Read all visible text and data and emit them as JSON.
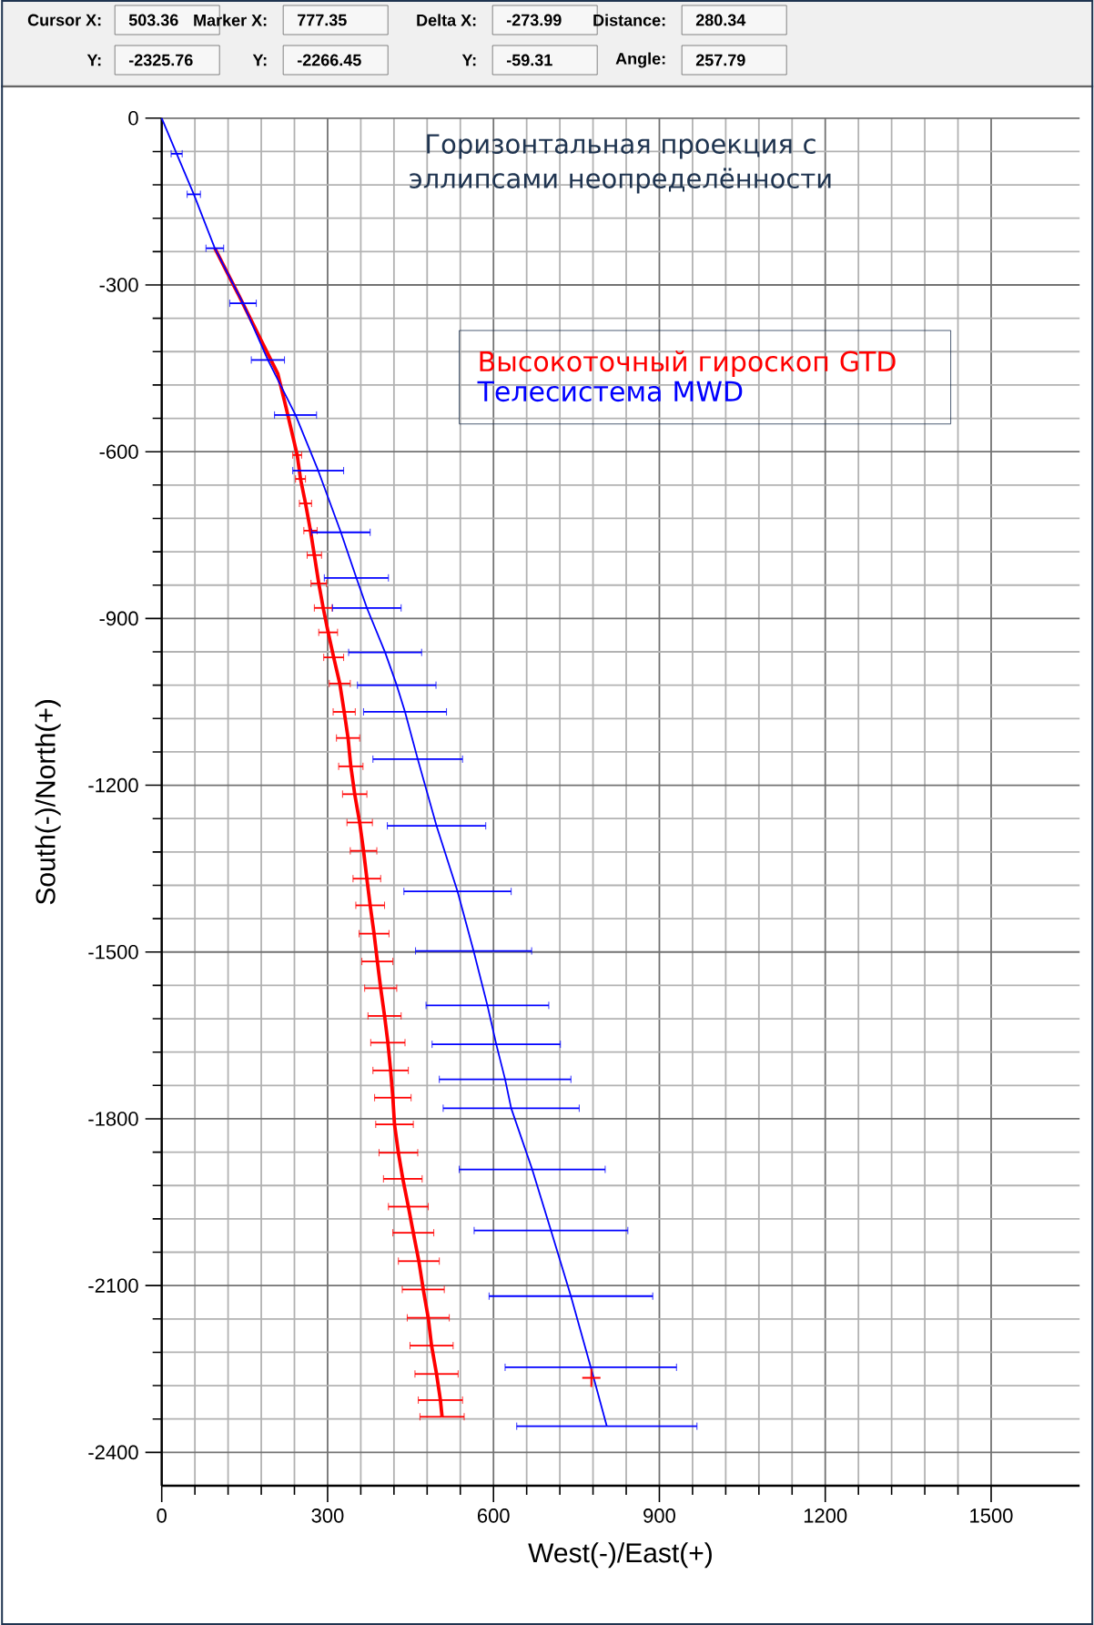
{
  "chart_data": {
    "type": "line",
    "title": "Горизонтальная проекция с эллипсами неопределённости",
    "xlabel": "West(-)/East(+)",
    "ylabel": "South(-)/North(+)",
    "xlim": [
      0,
      1660
    ],
    "ylim": [
      -2460,
      0
    ],
    "xticks": [
      0,
      300,
      600,
      900,
      1200,
      1500
    ],
    "yticks": [
      0,
      -300,
      -600,
      -900,
      -1200,
      -1500,
      -1800,
      -2100,
      -2400
    ],
    "grid": true,
    "legend": "top right",
    "annotations": [
      "Cursor X:",
      "503.36",
      "Marker X:",
      "777.35",
      "Delta X:",
      "-273.99",
      "Distance:",
      "280.34",
      "Y:",
      "-2325.76",
      "Y:",
      "-2266.45",
      "Y:",
      "-59.31",
      "Angle:",
      "257.79"
    ],
    "series": [
      {
        "name": "Высокоточный гироскоп GTD",
        "color": "#ff0000",
        "marker": "none",
        "x": [
          96,
          140,
          180,
          210,
          225,
          245,
          251,
          260,
          269,
          276,
          284,
          292,
          301,
          311,
          322,
          330,
          337,
          342,
          349,
          358,
          365,
          371,
          377,
          384,
          390,
          396,
          403,
          409,
          414,
          418,
          421,
          428,
          436,
          446,
          455,
          465,
          473,
          482,
          488,
          497,
          504,
          507
        ],
        "values": [
          -234,
          -320,
          -400,
          -460,
          -521,
          -606,
          -649,
          -693,
          -742,
          -786,
          -837,
          -881,
          -925,
          -970,
          -1017,
          -1068,
          -1115,
          -1166,
          -1216,
          -1267,
          -1318,
          -1368,
          -1416,
          -1467,
          -1517,
          -1565,
          -1615,
          -1663,
          -1713,
          -1762,
          -1810,
          -1861,
          -1908,
          -1958,
          -2005,
          -2056,
          -2107,
          -2158,
          -2208,
          -2259,
          -2306,
          -2336
        ],
        "xerrors": [
          null,
          null,
          null,
          null,
          null,
          8,
          9,
          11,
          12,
          13,
          14,
          16,
          17,
          18,
          19,
          20,
          21,
          22,
          22,
          23,
          24,
          25,
          26,
          27,
          28,
          29,
          30,
          31,
          32,
          33,
          34,
          35,
          35,
          36,
          37,
          37,
          38,
          38,
          39,
          39,
          40,
          40
        ]
      },
      {
        "name": "Телесистема MWD",
        "color": "#0000ff",
        "marker": "none",
        "x": [
          0,
          27,
          58,
          96,
          147,
          192,
          242,
          283,
          324,
          352,
          371,
          404,
          425,
          440,
          463,
          497,
          535,
          564,
          589,
          605,
          621,
          632,
          670,
          704,
          740,
          776,
          805
        ],
        "values": [
          0,
          -64,
          -137,
          -234,
          -333,
          -435,
          -534,
          -634,
          -745,
          -827,
          -881,
          -961,
          -1020,
          -1068,
          -1153,
          -1273,
          -1391,
          -1498,
          -1596,
          -1666,
          -1729,
          -1781,
          -1891,
          -2001,
          -2119,
          -2247,
          -2353
        ],
        "xerrors": [
          null,
          10,
          12,
          16,
          24,
          30,
          38,
          46,
          53,
          58,
          62,
          66,
          71,
          75,
          81,
          89,
          97,
          105,
          111,
          116,
          119,
          123,
          132,
          139,
          148,
          155,
          163
        ]
      },
      {
        "type": "scatter",
        "color": "#ff0000",
        "marker": "cross",
        "x": [
          777
        ],
        "values": [
          -2266
        ]
      }
    ]
  }
}
